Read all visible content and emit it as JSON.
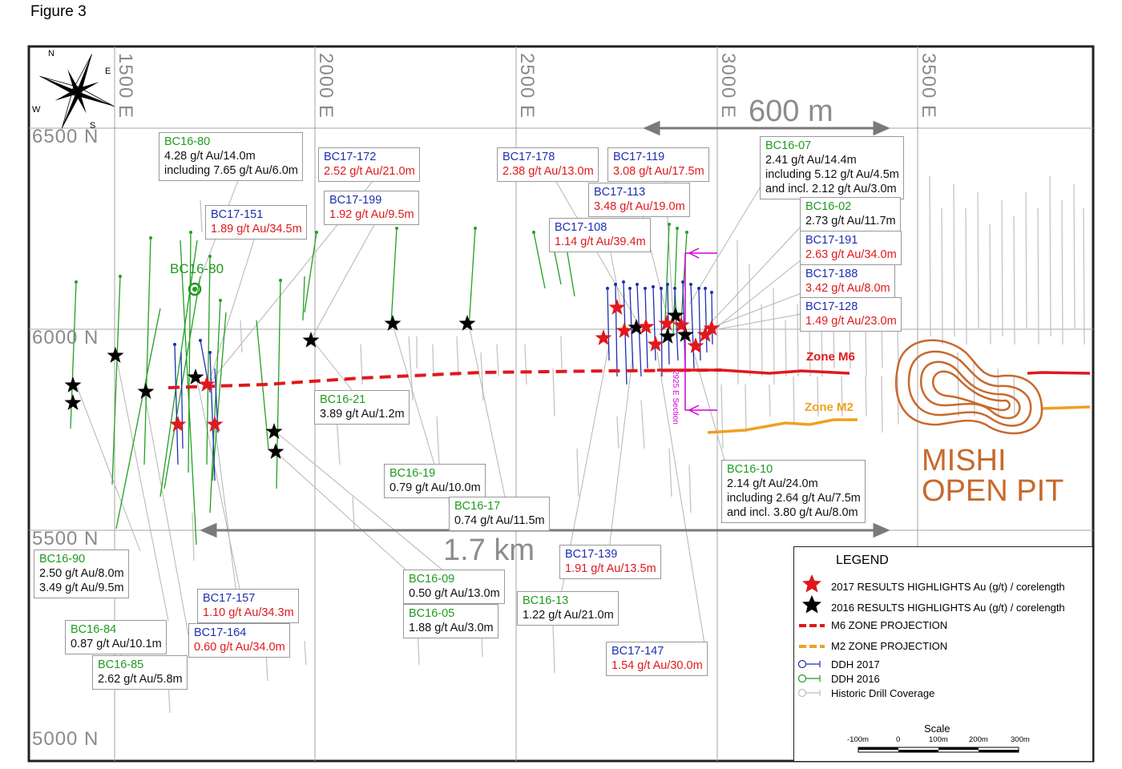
{
  "figure_title": "Figure 3",
  "grid": {
    "easting_labels": [
      "1500 E",
      "2000 E",
      "2500 E",
      "3000 E",
      "3500 E"
    ],
    "northing_labels": [
      "6500 N",
      "6000 N",
      "5500 N",
      "5000 N"
    ]
  },
  "compass": {
    "n": "N",
    "e": "E",
    "s": "S",
    "w": "W"
  },
  "distance_labels": {
    "top": "600 m",
    "bottom": "1.7 km"
  },
  "zones": {
    "m6": "Zone M6",
    "m2": "Zone M2"
  },
  "pit_label": {
    "line1": "MISHI",
    "line2": "OPEN PIT"
  },
  "map_hole_label": "BC16-80",
  "section_label": "2925 E Section",
  "callouts": [
    {
      "id": "BC16-80",
      "type": "2016",
      "lines": [
        "4.28 g/t Au/14.0m",
        "including 7.65 g/t Au/6.0m"
      ]
    },
    {
      "id": "BC17-172",
      "type": "2017",
      "lines": [
        "2.52 g/t Au/21.0m"
      ]
    },
    {
      "id": "BC17-199",
      "type": "2017",
      "lines": [
        "1.92 g/t Au/9.5m"
      ]
    },
    {
      "id": "BC17-151",
      "type": "2017",
      "lines": [
        "1.89 g/t Au/34.5m"
      ]
    },
    {
      "id": "BC17-178",
      "type": "2017",
      "lines": [
        "2.38 g/t Au/13.0m"
      ]
    },
    {
      "id": "BC17-119",
      "type": "2017",
      "lines": [
        "3.08 g/t Au/17.5m"
      ]
    },
    {
      "id": "BC17-113",
      "type": "2017",
      "lines": [
        "3.48 g/t Au/19.0m"
      ]
    },
    {
      "id": "BC17-108",
      "type": "2017",
      "lines": [
        "1.14 g/t Au/39.4m"
      ]
    },
    {
      "id": "BC16-07",
      "type": "2016",
      "lines": [
        "2.41 g/t Au/14.4m",
        "including 5.12 g/t Au/4.5m",
        "and incl. 2.12 g/t Au/3.0m"
      ]
    },
    {
      "id": "BC16-02",
      "type": "2016",
      "lines": [
        "2.73 g/t Au/11.7m"
      ]
    },
    {
      "id": "BC17-191",
      "type": "2017",
      "lines": [
        "2.63 g/t Au/34.0m"
      ]
    },
    {
      "id": "BC17-188",
      "type": "2017",
      "lines": [
        "3.42 g/t Au/8.0m"
      ]
    },
    {
      "id": "BC17-128",
      "type": "2017",
      "lines": [
        "1.49 g/t Au/23.0m"
      ]
    },
    {
      "id": "BC16-21",
      "type": "2016",
      "lines": [
        "3.89 g/t Au/1.2m"
      ]
    },
    {
      "id": "BC16-19",
      "type": "2016",
      "lines": [
        "0.79 g/t Au/10.0m"
      ]
    },
    {
      "id": "BC16-17",
      "type": "2016",
      "lines": [
        "0.74 g/t Au/11.5m"
      ]
    },
    {
      "id": "BC16-10",
      "type": "2016",
      "lines": [
        "2.14 g/t Au/24.0m",
        "including 2.64 g/t Au/7.5m",
        "and incl. 3.80 g/t Au/8.0m"
      ]
    },
    {
      "id": "BC16-90",
      "type": "2016",
      "lines": [
        "2.50 g/t Au/8.0m",
        "3.49 g/t Au/9.5m"
      ]
    },
    {
      "id": "BC17-157",
      "type": "2017",
      "lines": [
        "1.10 g/t Au/34.3m"
      ]
    },
    {
      "id": "BC16-84",
      "type": "2016",
      "lines": [
        "0.87 g/t Au/10.1m"
      ]
    },
    {
      "id": "BC17-164",
      "type": "2017",
      "lines": [
        "0.60 g/t Au/34.0m"
      ]
    },
    {
      "id": "BC16-85",
      "type": "2016",
      "lines": [
        "2.62 g/t Au/5.8m"
      ]
    },
    {
      "id": "BC16-09",
      "type": "2016",
      "lines": [
        "0.50 g/t Au/13.0m"
      ]
    },
    {
      "id": "BC16-05",
      "type": "2016",
      "lines": [
        "1.88 g/t Au/3.0m"
      ]
    },
    {
      "id": "BC16-13",
      "type": "2016",
      "lines": [
        "1.22 g/t Au/21.0m"
      ]
    },
    {
      "id": "BC17-139",
      "type": "2017",
      "lines": [
        "1.91 g/t Au/13.5m"
      ]
    },
    {
      "id": "BC17-147",
      "type": "2017",
      "lines": [
        "1.54 g/t Au/30.0m"
      ]
    }
  ],
  "legend": {
    "title": "LEGEND",
    "items": [
      {
        "label": "2017 RESULTS HIGHLIGHTS Au (g/t) / corelength",
        "symbol": "red-star"
      },
      {
        "label": "2016 RESULTS HIGHLIGHTS Au (g/t) / corelength",
        "symbol": "black-star"
      },
      {
        "label": "M6 ZONE PROJECTION",
        "symbol": "red-dash"
      },
      {
        "label": "M2 ZONE PROJECTION",
        "symbol": "orange-dash"
      },
      {
        "label": "DDH 2017",
        "symbol": "blue-hole"
      },
      {
        "label": "DDH 2016",
        "symbol": "green-hole"
      },
      {
        "label": "Historic Drill Coverage",
        "symbol": "grey-hole"
      }
    ],
    "scale_title": "Scale",
    "scale_ticks": [
      "-100m",
      "0",
      "100m",
      "200m",
      "300m"
    ]
  },
  "colors": {
    "ddh_2017": "#1e2fb0",
    "ddh_2016": "#1f9a1f",
    "result_2017": "#e0181c",
    "m6_zone": "#e0181c",
    "m2_zone": "#f0a020",
    "pit": "#c8692c",
    "historic": "#bdbdbd",
    "section": "#d400d4"
  }
}
